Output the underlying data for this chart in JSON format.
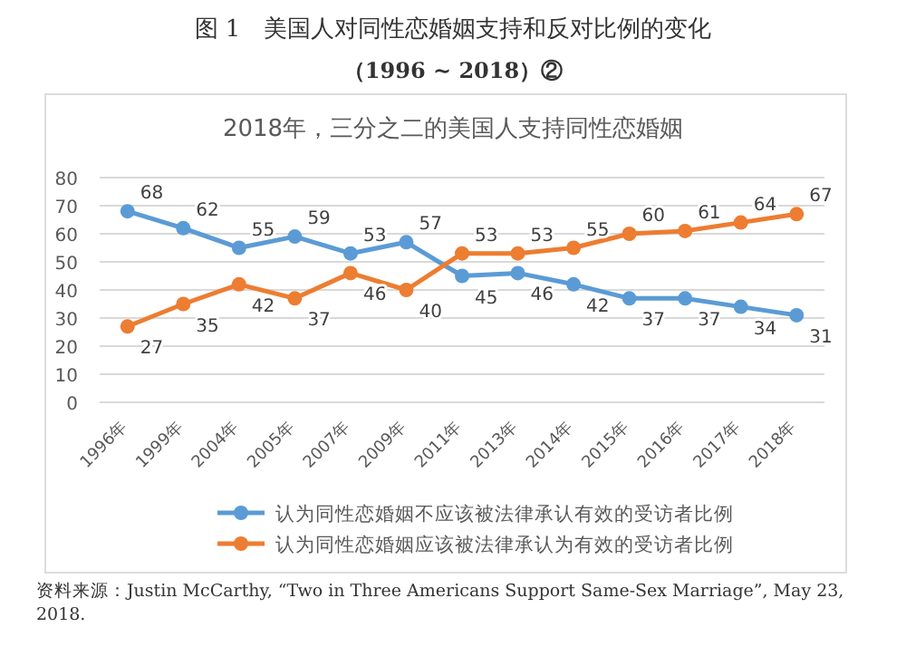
{
  "chart_data": {
    "type": "line",
    "title": "图 1　美国人对同性恋婚姻支持和反对比例的变化",
    "subtitle": "（1996 ~ 2018）②",
    "annotations": [
      "2018年，三分之二的美国人支持同性恋婚姻",
      "资料来源：Justin McCarthy, “Two in Three Americans Support Same-Sex Marriage”, May 23, 2018."
    ],
    "categories": [
      "1996年",
      "1999年",
      "2004年",
      "2005年",
      "2007年",
      "2009年",
      "2011年",
      "2013年",
      "2014年",
      "2015年",
      "2016年",
      "2017年",
      "2018年"
    ],
    "series": [
      {
        "name": "认为同性恋婚姻不应该被法律承认有效的受访者比例",
        "color": "#5b9bd5",
        "values": [
          68,
          62,
          55,
          59,
          53,
          57,
          45,
          46,
          42,
          37,
          37,
          34,
          31
        ]
      },
      {
        "name": "认为同性恋婚姻应该被法律承认为有效的受访者比例",
        "color": "#ed7d31",
        "values": [
          27,
          35,
          42,
          37,
          46,
          40,
          53,
          53,
          55,
          60,
          61,
          64,
          67
        ]
      }
    ],
    "ylim": [
      0,
      80
    ],
    "yticks": [
      0,
      10,
      20,
      30,
      40,
      50,
      60,
      70,
      80
    ],
    "grid": "y",
    "legend": "bottom",
    "marker": "circle",
    "line_style": "solid",
    "data_labels": true
  }
}
